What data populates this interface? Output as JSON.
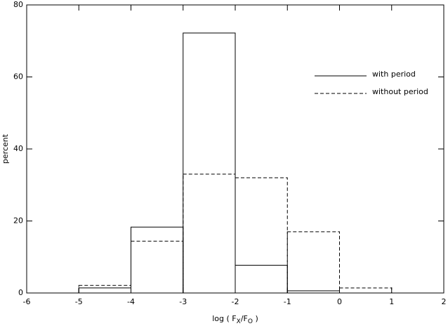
{
  "chart_data": {
    "type": "histogram",
    "xlabel": [
      "log ( F",
      "X",
      "/F",
      "O",
      " )"
    ],
    "ylabel": "percent",
    "bins": [
      -5,
      -4,
      -3,
      -2,
      -1,
      0,
      1
    ],
    "series": [
      {
        "name": "with period",
        "color": "#000000",
        "linestyle": "solid",
        "values": [
          1.4,
          18.3,
          72.2,
          7.7,
          0.6,
          0
        ]
      },
      {
        "name": "without period",
        "color": "#000000",
        "linestyle": "dashed",
        "values": [
          2.1,
          14.4,
          33.0,
          32.0,
          17.0,
          1.4
        ]
      }
    ],
    "xlim": [
      -6,
      2
    ],
    "xticks": [
      -6,
      -5,
      -4,
      -3,
      -2,
      -1,
      0,
      1,
      2
    ],
    "ylim": [
      0,
      80
    ],
    "yticks": [
      0,
      20,
      40,
      60,
      80
    ],
    "legend": "upper right"
  }
}
